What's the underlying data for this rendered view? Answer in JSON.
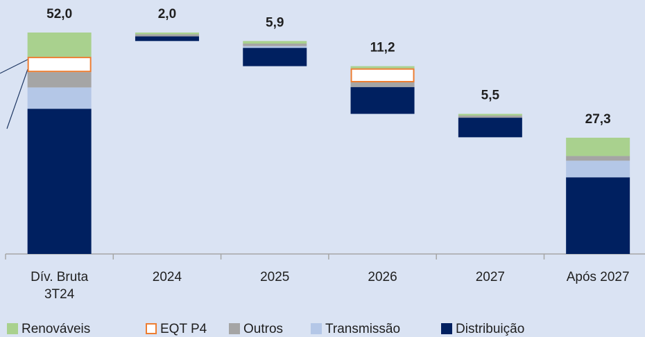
{
  "chart_data": {
    "type": "waterfall",
    "categories": [
      "Dív. Bruta 3T24",
      "2024",
      "2025",
      "2026",
      "2027",
      "Após 2027"
    ],
    "values": [
      52.0,
      2.0,
      5.9,
      11.2,
      5.5,
      27.3
    ],
    "value_labels": [
      "52,0",
      "2,0",
      "5,9",
      "11,2",
      "5,5",
      "27,3"
    ],
    "series": [
      {
        "name": "Renováveis",
        "color": "#a9d18e",
        "values": [
          5.7,
          0.4,
          0.6,
          0.5,
          0.4,
          4.3
        ]
      },
      {
        "name": "EQT P4",
        "color": "#ed7d31",
        "outline": true,
        "values": [
          3.6,
          0,
          0,
          3.3,
          0,
          0
        ]
      },
      {
        "name": "Outros",
        "color": "#a5a5a5",
        "values": [
          3.6,
          0.5,
          0.6,
          1.1,
          0.5,
          1.1
        ]
      },
      {
        "name": "Transmissão",
        "color": "#b4c7e7",
        "values": [
          5.0,
          0,
          0.4,
          0,
          0,
          3.9
        ]
      },
      {
        "name": "Distribuição",
        "color": "#002060",
        "values": [
          34.1,
          1.1,
          4.3,
          6.3,
          4.6,
          18.0
        ]
      }
    ],
    "ylim": [
      0,
      52
    ]
  }
}
